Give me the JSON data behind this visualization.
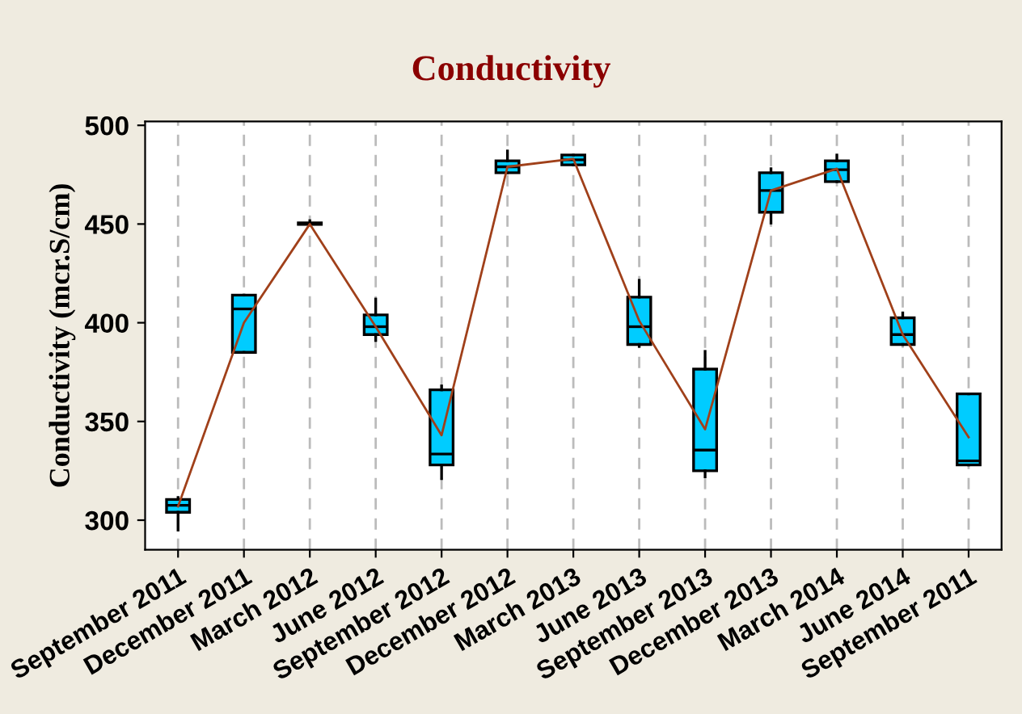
{
  "chart_data": {
    "type": "box",
    "title": "Conductivity",
    "ylabel": "Conductivity (mcr.S/cm)",
    "categories": [
      "September 2011",
      "December 2011",
      "March 2012",
      "June 2012",
      "September 2012",
      "December 2012",
      "March 2013",
      "June 2013",
      "September 2013",
      "December 2013",
      "March 2014",
      "June 2014",
      "September 2011"
    ],
    "color": "#00ccff",
    "boxes": [
      {
        "low": 295,
        "q1": 304,
        "median": 307.5,
        "q3": 310.5,
        "high": 311.5
      },
      {
        "low": 385,
        "q1": 385,
        "median": 407,
        "q3": 414,
        "high": 414
      },
      {
        "low": 449.5,
        "q1": 449.8,
        "median": 450,
        "q3": 450.6,
        "high": 451.7
      },
      {
        "low": 391,
        "q1": 394,
        "median": 398,
        "q3": 404,
        "high": 412
      },
      {
        "low": 321,
        "q1": 328,
        "median": 333.5,
        "q3": 366,
        "high": 368
      },
      {
        "low": 476,
        "q1": 476,
        "median": 479,
        "q3": 482,
        "high": 487
      },
      {
        "low": 480,
        "q1": 480,
        "median": 482.5,
        "q3": 485,
        "high": 485
      },
      {
        "low": 388,
        "q1": 389,
        "median": 398,
        "q3": 413,
        "high": 421.5
      },
      {
        "low": 322,
        "q1": 325,
        "median": 335.5,
        "q3": 376.5,
        "high": 385.5
      },
      {
        "low": 450.5,
        "q1": 456,
        "median": 467,
        "q3": 476,
        "high": 478
      },
      {
        "low": 471.5,
        "q1": 471.5,
        "median": 477.5,
        "q3": 482,
        "high": 485
      },
      {
        "low": 389,
        "q1": 389,
        "median": 394,
        "q3": 402.5,
        "high": 405
      },
      {
        "low": 328,
        "q1": 328,
        "median": 330,
        "q3": 364,
        "high": 364
      }
    ],
    "series": [
      {
        "type": "line",
        "color": "#a0401a",
        "values": [
          307,
          400,
          450,
          398,
          343,
          479,
          483,
          401,
          346,
          467,
          478,
          394,
          342
        ]
      }
    ],
    "ylim": [
      285,
      502
    ],
    "yticks": [
      300,
      350,
      400,
      450,
      500
    ],
    "grid": "x"
  }
}
